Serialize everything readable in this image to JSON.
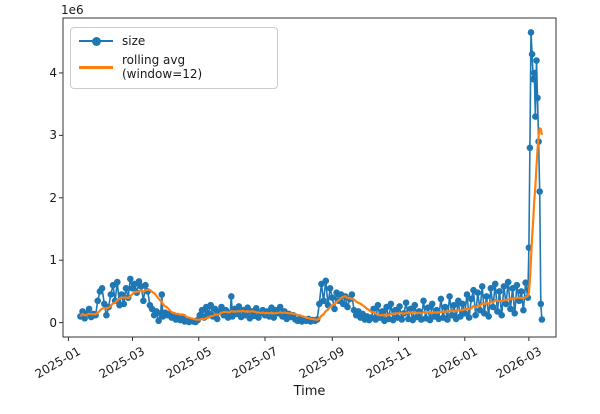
{
  "figure": {
    "offset_label": "1e6",
    "background": "#ffffff",
    "text_color": "#1a1a1a",
    "spine_color": "#333333",
    "accent_blue": "#1f77b4",
    "accent_orange": "#ff7f0e"
  },
  "legend": {
    "items": [
      {
        "label": "size",
        "color": "#1f77b4",
        "marker": "circle"
      },
      {
        "label": "rolling avg (window=12)",
        "color": "#ff7f0e",
        "marker": "line"
      }
    ]
  },
  "chart_data": {
    "type": "line",
    "title": "",
    "xlabel": "Time",
    "ylabel": "",
    "y_offset_label": "1e6",
    "grid": false,
    "legend_position": "upper left",
    "ylim": [
      -230000,
      4880000
    ],
    "y_ticks": [
      {
        "value": 0,
        "label": "0"
      },
      {
        "value": 1000000,
        "label": "1"
      },
      {
        "value": 2000000,
        "label": "2"
      },
      {
        "value": 3000000,
        "label": "3"
      },
      {
        "value": 4000000,
        "label": "4"
      }
    ],
    "x_axis": {
      "epoch": "2024-12-27",
      "unit": "days_since_epoch",
      "lim": [
        0,
        454
      ]
    },
    "x_ticks": [
      {
        "day": 5,
        "label": "2025-01"
      },
      {
        "day": 64,
        "label": "2025-03"
      },
      {
        "day": 125,
        "label": "2025-05"
      },
      {
        "day": 186,
        "label": "2025-07"
      },
      {
        "day": 248,
        "label": "2025-09"
      },
      {
        "day": 309,
        "label": "2025-11"
      },
      {
        "day": 370,
        "label": "2026-01"
      },
      {
        "day": 429,
        "label": "2026-03"
      }
    ],
    "series": [
      {
        "name": "size",
        "color": "#1f77b4",
        "style": "line_with_circle_markers",
        "values_unit": 1000000,
        "points": [
          [
            16,
            0.1
          ],
          [
            18,
            0.18
          ],
          [
            20,
            0.07
          ],
          [
            22,
            0.15
          ],
          [
            24,
            0.22
          ],
          [
            26,
            0.09
          ],
          [
            28,
            0.14
          ],
          [
            30,
            0.12
          ],
          [
            32,
            0.35
          ],
          [
            34,
            0.5
          ],
          [
            36,
            0.55
          ],
          [
            38,
            0.3
          ],
          [
            40,
            0.12
          ],
          [
            42,
            0.25
          ],
          [
            44,
            0.45
          ],
          [
            46,
            0.6
          ],
          [
            48,
            0.35
          ],
          [
            50,
            0.65
          ],
          [
            52,
            0.28
          ],
          [
            54,
            0.45
          ],
          [
            56,
            0.3
          ],
          [
            58,
            0.55
          ],
          [
            60,
            0.4
          ],
          [
            62,
            0.7
          ],
          [
            64,
            0.55
          ],
          [
            66,
            0.62
          ],
          [
            68,
            0.48
          ],
          [
            70,
            0.66
          ],
          [
            72,
            0.58
          ],
          [
            74,
            0.35
          ],
          [
            76,
            0.6
          ],
          [
            78,
            0.5
          ],
          [
            80,
            0.28
          ],
          [
            82,
            0.22
          ],
          [
            84,
            0.12
          ],
          [
            86,
            0.18
          ],
          [
            88,
            0.03
          ],
          [
            90,
            0.15
          ],
          [
            91,
            0.45
          ],
          [
            92,
            0.1
          ],
          [
            94,
            0.16
          ],
          [
            96,
            0.12
          ],
          [
            98,
            0.14
          ],
          [
            100,
            0.08
          ],
          [
            102,
            0.12
          ],
          [
            104,
            0.05
          ],
          [
            106,
            0.1
          ],
          [
            108,
            0.04
          ],
          [
            110,
            0.07
          ],
          [
            112,
            0.02
          ],
          [
            114,
            0.05
          ],
          [
            116,
            0.01
          ],
          [
            118,
            0.03
          ],
          [
            120,
            0.02
          ],
          [
            122,
            0.01
          ],
          [
            124,
            0.04
          ],
          [
            126,
            0.12
          ],
          [
            128,
            0.2
          ],
          [
            130,
            0.08
          ],
          [
            132,
            0.25
          ],
          [
            134,
            0.15
          ],
          [
            136,
            0.28
          ],
          [
            138,
            0.1
          ],
          [
            140,
            0.22
          ],
          [
            142,
            0.06
          ],
          [
            144,
            0.18
          ],
          [
            146,
            0.25
          ],
          [
            148,
            0.12
          ],
          [
            150,
            0.2
          ],
          [
            152,
            0.08
          ],
          [
            154,
            0.15
          ],
          [
            155,
            0.42
          ],
          [
            156,
            0.1
          ],
          [
            158,
            0.22
          ],
          [
            160,
            0.14
          ],
          [
            162,
            0.26
          ],
          [
            164,
            0.09
          ],
          [
            166,
            0.2
          ],
          [
            168,
            0.12
          ],
          [
            170,
            0.24
          ],
          [
            172,
            0.07
          ],
          [
            174,
            0.18
          ],
          [
            176,
            0.11
          ],
          [
            178,
            0.23
          ],
          [
            180,
            0.08
          ],
          [
            182,
            0.16
          ],
          [
            184,
            0.2
          ],
          [
            186,
            0.12
          ],
          [
            188,
            0.18
          ],
          [
            190,
            0.1
          ],
          [
            192,
            0.24
          ],
          [
            194,
            0.08
          ],
          [
            196,
            0.2
          ],
          [
            198,
            0.15
          ],
          [
            200,
            0.25
          ],
          [
            202,
            0.1
          ],
          [
            204,
            0.18
          ],
          [
            206,
            0.06
          ],
          [
            208,
            0.14
          ],
          [
            210,
            0.09
          ],
          [
            212,
            0.12
          ],
          [
            214,
            0.05
          ],
          [
            216,
            0.03
          ],
          [
            218,
            0.06
          ],
          [
            220,
            0.02
          ],
          [
            222,
            0.05
          ],
          [
            224,
            0.03
          ],
          [
            226,
            0.06
          ],
          [
            228,
            0.02
          ],
          [
            230,
            0.04
          ],
          [
            232,
            0.03
          ],
          [
            234,
            0.05
          ],
          [
            236,
            0.3
          ],
          [
            238,
            0.62
          ],
          [
            240,
            0.35
          ],
          [
            242,
            0.67
          ],
          [
            244,
            0.28
          ],
          [
            246,
            0.55
          ],
          [
            248,
            0.4
          ],
          [
            250,
            0.22
          ],
          [
            252,
            0.48
          ],
          [
            254,
            0.35
          ],
          [
            256,
            0.45
          ],
          [
            258,
            0.3
          ],
          [
            260,
            0.42
          ],
          [
            262,
            0.25
          ],
          [
            264,
            0.38
          ],
          [
            266,
            0.45
          ],
          [
            268,
            0.2
          ],
          [
            270,
            0.12
          ],
          [
            272,
            0.18
          ],
          [
            274,
            0.08
          ],
          [
            276,
            0.14
          ],
          [
            278,
            0.05
          ],
          [
            280,
            0.1
          ],
          [
            282,
            0.04
          ],
          [
            284,
            0.08
          ],
          [
            286,
            0.22
          ],
          [
            288,
            0.05
          ],
          [
            290,
            0.28
          ],
          [
            292,
            0.08
          ],
          [
            294,
            0.18
          ],
          [
            296,
            0.03
          ],
          [
            298,
            0.25
          ],
          [
            300,
            0.06
          ],
          [
            302,
            0.3
          ],
          [
            304,
            0.04
          ],
          [
            306,
            0.2
          ],
          [
            308,
            0.08
          ],
          [
            310,
            0.26
          ],
          [
            312,
            0.05
          ],
          [
            314,
            0.15
          ],
          [
            316,
            0.32
          ],
          [
            318,
            0.06
          ],
          [
            320,
            0.22
          ],
          [
            322,
            0.04
          ],
          [
            324,
            0.28
          ],
          [
            326,
            0.09
          ],
          [
            328,
            0.18
          ],
          [
            330,
            0.05
          ],
          [
            332,
            0.35
          ],
          [
            334,
            0.07
          ],
          [
            336,
            0.24
          ],
          [
            338,
            0.04
          ],
          [
            340,
            0.3
          ],
          [
            342,
            0.1
          ],
          [
            344,
            0.2
          ],
          [
            346,
            0.06
          ],
          [
            348,
            0.38
          ],
          [
            350,
            0.08
          ],
          [
            352,
            0.25
          ],
          [
            354,
            0.05
          ],
          [
            356,
            0.42
          ],
          [
            358,
            0.12
          ],
          [
            360,
            0.28
          ],
          [
            362,
            0.06
          ],
          [
            364,
            0.35
          ],
          [
            366,
            0.1
          ],
          [
            368,
            0.3
          ],
          [
            370,
            0.15
          ],
          [
            372,
            0.45
          ],
          [
            374,
            0.08
          ],
          [
            376,
            0.38
          ],
          [
            378,
            0.52
          ],
          [
            380,
            0.12
          ],
          [
            382,
            0.48
          ],
          [
            384,
            0.2
          ],
          [
            386,
            0.58
          ],
          [
            388,
            0.15
          ],
          [
            390,
            0.42
          ],
          [
            392,
            0.1
          ],
          [
            394,
            0.55
          ],
          [
            396,
            0.25
          ],
          [
            398,
            0.62
          ],
          [
            400,
            0.18
          ],
          [
            402,
            0.5
          ],
          [
            404,
            0.12
          ],
          [
            406,
            0.58
          ],
          [
            408,
            0.3
          ],
          [
            410,
            0.65
          ],
          [
            412,
            0.22
          ],
          [
            414,
            0.55
          ],
          [
            416,
            0.15
          ],
          [
            418,
            0.6
          ],
          [
            420,
            0.35
          ],
          [
            422,
            0.5
          ],
          [
            424,
            0.2
          ],
          [
            426,
            0.64
          ],
          [
            428,
            0.4
          ],
          [
            429,
            1.2
          ],
          [
            430,
            2.8
          ],
          [
            431,
            4.65
          ],
          [
            432,
            4.3
          ],
          [
            433,
            3.9
          ],
          [
            434,
            4.0
          ],
          [
            435,
            3.3
          ],
          [
            436,
            4.2
          ],
          [
            437,
            3.6
          ],
          [
            438,
            2.9
          ],
          [
            439,
            2.1
          ],
          [
            440,
            0.3
          ],
          [
            441,
            0.05
          ]
        ]
      },
      {
        "name": "rolling avg (window=12)",
        "color": "#ff7f0e",
        "style": "line",
        "derived_from": "size",
        "derivation": "rolling_mean",
        "window": 12
      }
    ]
  }
}
